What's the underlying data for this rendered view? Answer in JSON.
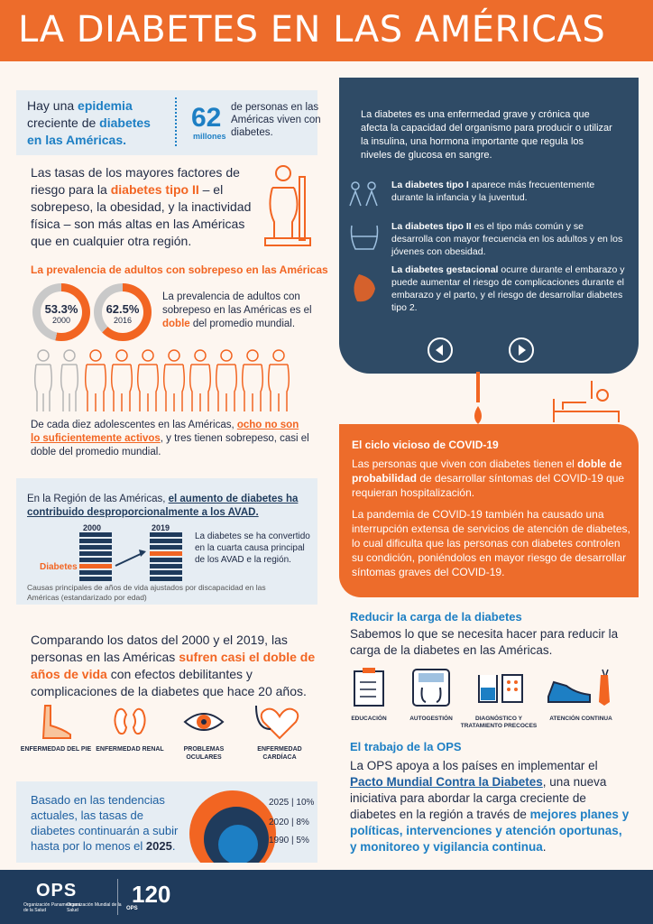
{
  "header": {
    "title": "LA DIABETES EN LAS AMÉRICAS"
  },
  "intro": {
    "text_a": "Hay una ",
    "text_b": "epidemia",
    "text_c": " creciente de ",
    "text_d": "diabetes en las Américas.",
    "big_number": "62",
    "big_unit": "millones",
    "big_text": "de personas en las Américas viven con diabetes."
  },
  "risk": {
    "a": "Las tasas de los mayores factores de riesgo para la ",
    "b": "diabetes tipo II",
    "c": " – el sobrepeso, la obesidad, y la inactividad física – son más altas en las Américas que en cualquier otra región."
  },
  "prevalence": {
    "title": "La prevalencia de adultos con sobrepeso en las Américas",
    "donut1": {
      "pct": "53.3%",
      "year": "2000",
      "value": 53.3
    },
    "donut2": {
      "pct": "62.5%",
      "year": "2016",
      "value": 62.5
    },
    "desc_a": "La prevalencia de adultos con sobrepeso en las Américas es el ",
    "desc_b": "doble",
    "desc_c": " del promedio mundial."
  },
  "teens": {
    "a": "De cada diez adolescentes en las Américas, ",
    "b": "ocho no son lo suficientemente activos",
    "c": ", y tres tienen sobrepeso, casi el doble del promedio mundial."
  },
  "avad": {
    "a": "En la Región de las Américas, ",
    "b": "el aumento de diabetes ha contribuido desproporcionalmente a los AVAD.",
    "year1": "2000",
    "year2": "2019",
    "label": "Diabetes",
    "note": "La diabetes se ha convertido en la cuarta causa principal de los AVAD e la región.",
    "footnote": "Causas principales de años de vida ajustados por discapacidad en las Américas (estandarizado por edad)"
  },
  "compare": {
    "a": "Comparando los datos del 2000 y el 2019, las personas en las Américas ",
    "b": "sufren casi el doble de años de vida",
    "c": " con efectos debilitantes y complicaciones de la diabetes que hace 20 años."
  },
  "complications": [
    {
      "icon": "foot-icon",
      "label": "ENFERMEDAD DEL PIE"
    },
    {
      "icon": "kidney-icon",
      "label": "ENFERMEDAD RENAL"
    },
    {
      "icon": "eye-icon",
      "label": "PROBLEMAS OCULARES"
    },
    {
      "icon": "heart-icon",
      "label": "ENFERMEDAD CARDÍACA"
    }
  ],
  "trend": {
    "a": "Basado en las tendencias actuales, las tasas de diabetes continuarán a subir hasta por lo menos el ",
    "b": "2025",
    "c": ".",
    "rows": [
      "2025 | 10%",
      "2020 | 8%",
      "1990 | 5%"
    ]
  },
  "info": {
    "intro": "La diabetes es una enfermedad grave y crónica que afecta la capacidad del organismo para producir o utilizar la insulina, una hormona importante que regula los niveles de glucosa en sangre.",
    "type1_b": "La diabetes tipo I",
    "type1_t": " aparece más frecuentemente durante la infancia y la juventud.",
    "type2_b": "La diabetes tipo II",
    "type2_t": " es el tipo más común y se desarrolla con mayor frecuencia en los adultos y en los jóvenes con obesidad.",
    "gest_b": "La diabetes gestacional",
    "gest_t": " ocurre durante el embarazo y puede aumentar el riesgo de complicaciones durante el embarazo y el parto, y el riesgo de desarrollar diabetes tipo 2."
  },
  "covid": {
    "title": "El ciclo vicioso de COVID-19",
    "p1_a": "Las personas que viven con diabetes tienen el ",
    "p1_b": "doble de probabilidad",
    "p1_c": " de desarrollar síntomas del COVID-19 que requieran hospitalización.",
    "p2": "La pandemia de COVID-19 también ha causado una interrupción extensa de servicios de atención de diabetes, lo cual dificulta que las personas con diabetes controlen su condición, poniéndolos en mayor riesgo de desarrollar síntomas graves del COVID-19."
  },
  "reduce": {
    "title": "Reducir la carga de la diabetes",
    "text": "Sabemos lo que se necesita hacer para reducir la carga de la diabetes en las Américas."
  },
  "actions": [
    {
      "icon": "clipboard-icon",
      "label": "EDUCACIÓN"
    },
    {
      "icon": "scale-icon",
      "label": "AUTOGESTIÓN"
    },
    {
      "icon": "test-icon",
      "label": "DIAGNÓSTICO Y TRATAMIENTO PRECOCES"
    },
    {
      "icon": "shoe-icon",
      "label": "ATENCIÓN CONTINUA"
    }
  ],
  "ops": {
    "title": "El trabajo de la OPS",
    "a": "La OPS apoya a los países en implementar el ",
    "link": "Pacto Mundial Contra la Diabetes",
    "b": ", una nueva iniciativa para abordar la carga creciente de diabetes en la región a través de ",
    "c": "mejores planes y políticas, intervenciones y atención oportunas, y monitoreo y vigilancia continua",
    "d": "."
  },
  "footer": {
    "logo": "OPS",
    "org1": "Organización Panamericana de la Salud",
    "org2": "Organización Mundial de la Salud",
    "anniv": "120",
    "anniv_prefix": "OPS"
  },
  "colors": {
    "orange": "#ed6c2b",
    "navy": "#1f3b5c",
    "blue": "#1d7fc4",
    "panel": "#2f4b66"
  }
}
